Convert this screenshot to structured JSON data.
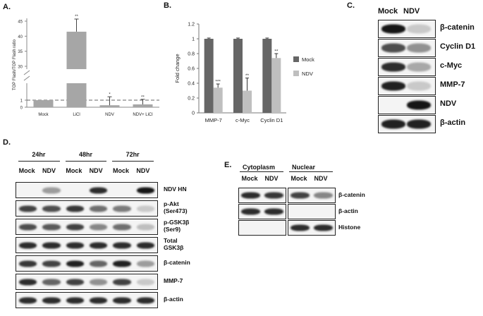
{
  "panels": {
    "A": "A.",
    "B": "B.",
    "C": "C.",
    "D": "D.",
    "E": "E."
  },
  "chart_data": [
    {
      "type": "bar",
      "panel": "A",
      "ylabel": "TOP Flash/TOP Flash ratio",
      "categories": [
        "Mock",
        "LiCl",
        "NDV",
        "NDV+ LiCl"
      ],
      "values": [
        1.0,
        41.5,
        0.28,
        0.4
      ],
      "errors": [
        0.0,
        4.2,
        0.2,
        0.12
      ],
      "significance": [
        "",
        "**",
        "*",
        "**"
      ],
      "yticks_lower": [
        "0",
        "1"
      ],
      "yticks_upper": [
        "30",
        "35",
        "40",
        "45"
      ],
      "axis_break": true,
      "reference_line": 1,
      "color": "#a6a6a6"
    },
    {
      "type": "bar",
      "panel": "B",
      "ylabel": "Fold change",
      "categories": [
        "MMP-7",
        "c-Myc",
        "Cyclin D1"
      ],
      "series": [
        {
          "name": "Mock",
          "values": [
            1.0,
            1.0,
            1.0
          ],
          "errors": [
            0.0,
            0.0,
            0.0
          ],
          "color": "#666666"
        },
        {
          "name": "NDV",
          "values": [
            0.34,
            0.3,
            0.74
          ],
          "errors": [
            0.05,
            0.17,
            0.06
          ],
          "color": "#bfbfbf"
        }
      ],
      "significance": [
        "***",
        "**",
        "**"
      ],
      "yticks": [
        "0",
        "0.2",
        "0.4",
        "0.6",
        "0.8",
        "1",
        "1.2"
      ],
      "ylim": [
        0,
        1.2
      ],
      "legend": "right"
    }
  ],
  "blot_C": {
    "lanes": [
      "Mock",
      "NDV"
    ],
    "rows": [
      {
        "label": "β-catenin",
        "i": [
          0.95,
          0.15
        ]
      },
      {
        "label": "Cyclin D1",
        "i": [
          0.7,
          0.4
        ]
      },
      {
        "label": "c-Myc",
        "i": [
          0.85,
          0.3
        ]
      },
      {
        "label": "MMP-7",
        "i": [
          0.9,
          0.15
        ]
      },
      {
        "label": "NDV",
        "i": [
          0.0,
          0.95
        ]
      },
      {
        "label": "β-actin",
        "i": [
          0.9,
          0.9
        ]
      }
    ]
  },
  "blot_D": {
    "timepoints": [
      "24hr",
      "48hr",
      "72hr"
    ],
    "lanes": [
      "Mock",
      "NDV",
      "Mock",
      "NDV",
      "Mock",
      "NDV"
    ],
    "rows": [
      {
        "label": "NDV HN",
        "label2": "",
        "i": [
          0.0,
          0.35,
          0.0,
          0.85,
          0.0,
          0.95
        ]
      },
      {
        "label": "p-Akt",
        "label2": "(Ser473)",
        "i": [
          0.75,
          0.7,
          0.8,
          0.55,
          0.5,
          0.15
        ]
      },
      {
        "label": "p-GSK3β",
        "label2": "(Ser9)",
        "i": [
          0.7,
          0.65,
          0.75,
          0.45,
          0.55,
          0.2
        ]
      },
      {
        "label": "Total",
        "label2": "GSK3β",
        "i": [
          0.85,
          0.85,
          0.85,
          0.85,
          0.85,
          0.85
        ]
      },
      {
        "label": "β-catenin",
        "label2": "",
        "i": [
          0.8,
          0.75,
          0.9,
          0.6,
          0.9,
          0.35
        ]
      },
      {
        "label": "MMP-7",
        "label2": "",
        "i": [
          0.85,
          0.6,
          0.75,
          0.4,
          0.75,
          0.15
        ]
      },
      {
        "label": "β-actin",
        "label2": "",
        "i": [
          0.85,
          0.85,
          0.85,
          0.85,
          0.85,
          0.85
        ]
      }
    ]
  },
  "blot_E": {
    "groups": [
      "Cytoplasm",
      "Nuclear"
    ],
    "lanes": [
      "Mock",
      "NDV",
      "Mock",
      "NDV"
    ],
    "rows": [
      {
        "label": "β-catenin",
        "i": [
          0.85,
          0.8,
          0.75,
          0.45
        ]
      },
      {
        "label": "β-actin",
        "i": [
          0.85,
          0.85,
          0.0,
          0.0
        ]
      },
      {
        "label": "Histone",
        "i": [
          0.0,
          0.0,
          0.85,
          0.85
        ]
      }
    ]
  }
}
